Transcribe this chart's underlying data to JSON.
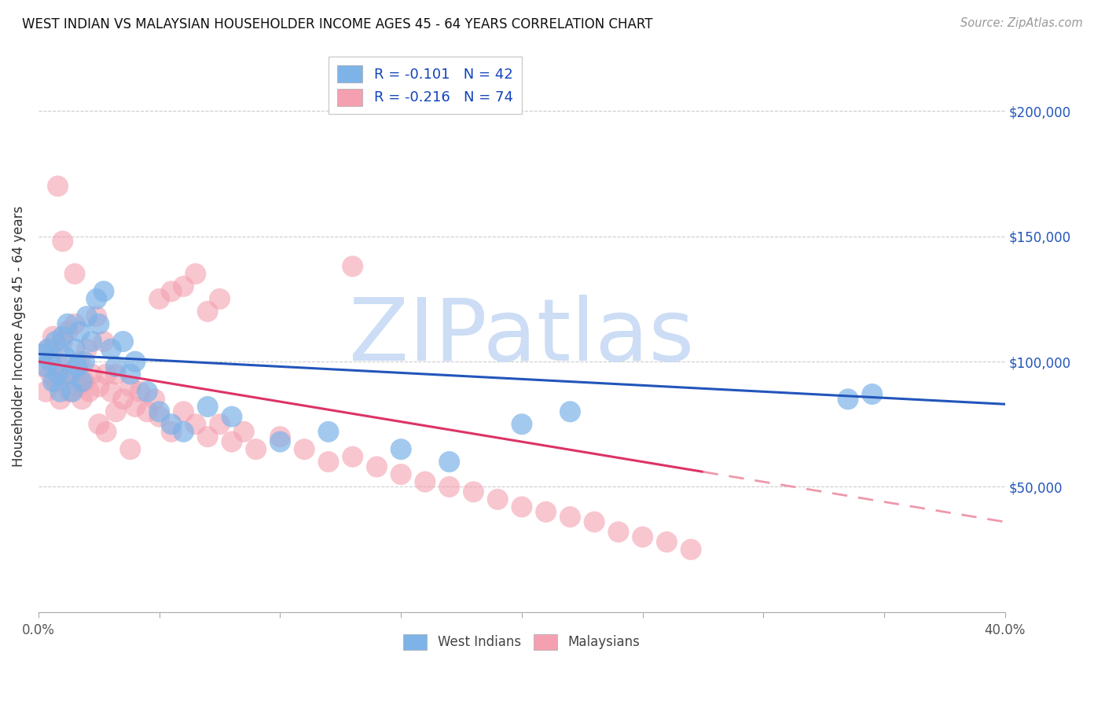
{
  "title": "WEST INDIAN VS MALAYSIAN HOUSEHOLDER INCOME AGES 45 - 64 YEARS CORRELATION CHART",
  "source": "Source: ZipAtlas.com",
  "ylabel": "Householder Income Ages 45 - 64 years",
  "xlim": [
    0.0,
    0.4
  ],
  "ylim": [
    0,
    220000
  ],
  "west_indian_color": "#7eb3e8",
  "malaysian_color": "#f4a0b0",
  "west_indian_R": -0.101,
  "west_indian_N": 42,
  "malaysian_R": -0.216,
  "malaysian_N": 74,
  "trend_blue_color": "#2255bb",
  "trend_pink_color": "#dd3366",
  "trend_pink_dash_color": "#ee99aa",
  "watermark": "ZIPatlas",
  "watermark_color": "#ccddf5",
  "background_color": "#ffffff",
  "wi_x": [
    0.002,
    0.003,
    0.004,
    0.005,
    0.006,
    0.007,
    0.008,
    0.009,
    0.01,
    0.011,
    0.012,
    0.013,
    0.014,
    0.015,
    0.016,
    0.017,
    0.018,
    0.019,
    0.02,
    0.022,
    0.024,
    0.025,
    0.027,
    0.03,
    0.032,
    0.035,
    0.038,
    0.04,
    0.045,
    0.05,
    0.055,
    0.06,
    0.07,
    0.08,
    0.1,
    0.12,
    0.15,
    0.17,
    0.2,
    0.22,
    0.335,
    0.345
  ],
  "wi_y": [
    103000,
    98000,
    105000,
    100000,
    92000,
    108000,
    95000,
    88000,
    110000,
    102000,
    115000,
    95000,
    88000,
    105000,
    98000,
    112000,
    92000,
    100000,
    118000,
    108000,
    125000,
    115000,
    128000,
    105000,
    98000,
    108000,
    95000,
    100000,
    88000,
    80000,
    75000,
    72000,
    82000,
    78000,
    68000,
    72000,
    65000,
    60000,
    75000,
    80000,
    85000,
    87000
  ],
  "ma_x": [
    0.002,
    0.003,
    0.004,
    0.005,
    0.006,
    0.007,
    0.008,
    0.009,
    0.01,
    0.011,
    0.012,
    0.013,
    0.014,
    0.015,
    0.016,
    0.017,
    0.018,
    0.019,
    0.02,
    0.021,
    0.022,
    0.024,
    0.025,
    0.027,
    0.028,
    0.03,
    0.032,
    0.035,
    0.038,
    0.04,
    0.042,
    0.045,
    0.048,
    0.05,
    0.055,
    0.06,
    0.065,
    0.07,
    0.075,
    0.08,
    0.085,
    0.09,
    0.1,
    0.11,
    0.12,
    0.13,
    0.14,
    0.15,
    0.16,
    0.17,
    0.18,
    0.19,
    0.2,
    0.21,
    0.22,
    0.23,
    0.24,
    0.25,
    0.26,
    0.27,
    0.008,
    0.01,
    0.015,
    0.05,
    0.055,
    0.06,
    0.065,
    0.07,
    0.075,
    0.13,
    0.025,
    0.028,
    0.032,
    0.038
  ],
  "ma_y": [
    98000,
    88000,
    105000,
    95000,
    110000,
    92000,
    100000,
    85000,
    108000,
    95000,
    112000,
    88000,
    95000,
    115000,
    90000,
    100000,
    85000,
    92000,
    105000,
    88000,
    95000,
    118000,
    90000,
    108000,
    95000,
    88000,
    95000,
    85000,
    90000,
    82000,
    88000,
    80000,
    85000,
    78000,
    72000,
    80000,
    75000,
    70000,
    75000,
    68000,
    72000,
    65000,
    70000,
    65000,
    60000,
    62000,
    58000,
    55000,
    52000,
    50000,
    48000,
    45000,
    42000,
    40000,
    38000,
    36000,
    32000,
    30000,
    28000,
    25000,
    170000,
    148000,
    135000,
    125000,
    128000,
    130000,
    135000,
    120000,
    125000,
    138000,
    75000,
    72000,
    80000,
    65000
  ]
}
